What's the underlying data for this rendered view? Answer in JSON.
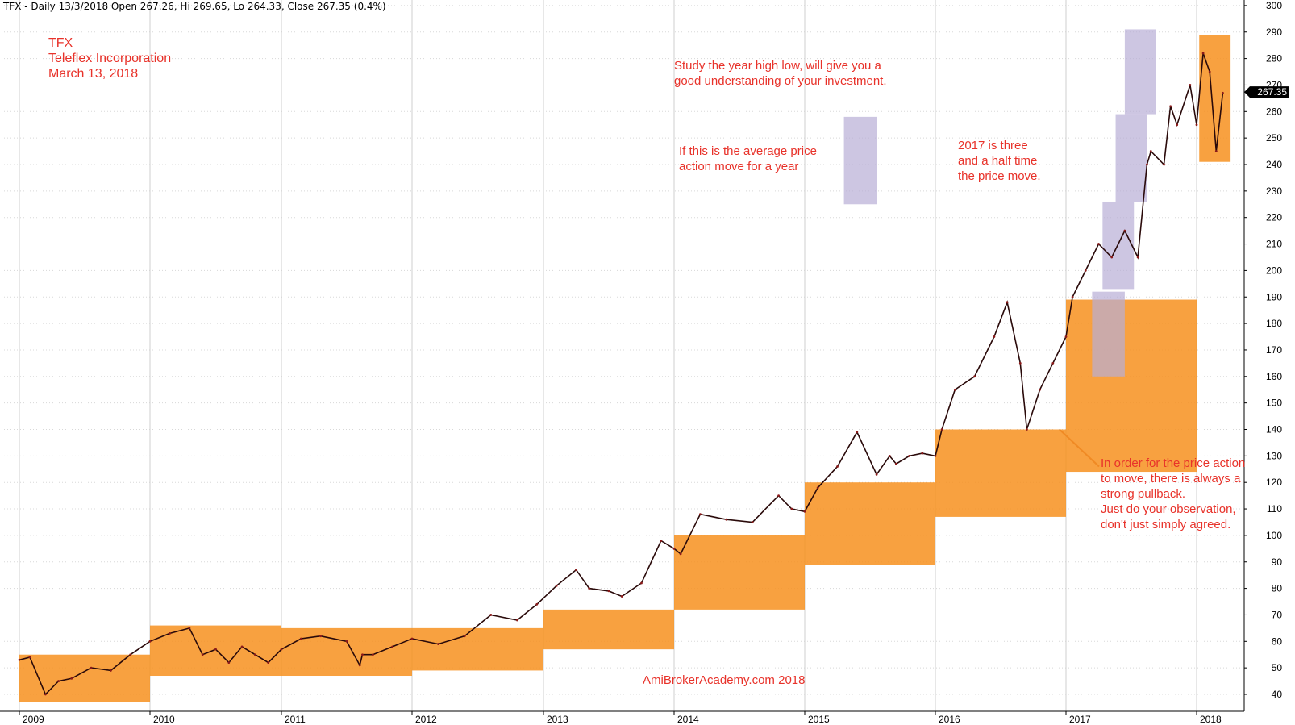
{
  "header": {
    "title": "TFX - Daily 13/3/2018 Open 267.26, Hi 269.65, Lo 264.33, Close 267.35 (0.4%)"
  },
  "company": {
    "ticker": "TFX",
    "name": "Teleflex Incorporation",
    "date": "March 13, 2018"
  },
  "annotations": {
    "study": [
      "Study the year high low, will give you a",
      "good understanding of your investment."
    ],
    "average": [
      "If this is the average price",
      "action move for a year"
    ],
    "three_half": [
      "2017 is three",
      "and a half time",
      "the price move."
    ],
    "pullback": [
      "In order for the price action",
      "to move, there is always a",
      "strong pullback.",
      "Just do your observation,",
      "don't just simply agreed."
    ],
    "watermark": "AmiBrokerAcademy.com  2018"
  },
  "chart_data": {
    "type": "line",
    "ylim": [
      35,
      302
    ],
    "yticks": [
      40,
      50,
      60,
      70,
      80,
      90,
      100,
      110,
      120,
      130,
      140,
      150,
      160,
      170,
      180,
      190,
      200,
      210,
      220,
      230,
      240,
      250,
      260,
      270,
      280,
      290,
      300
    ],
    "year_labels": [
      "2009",
      "2010",
      "2011",
      "2012",
      "2013",
      "2014",
      "2015",
      "2016",
      "2017",
      "2018"
    ],
    "last_price": "267.35",
    "series": [
      {
        "x": [
          2009.0,
          2009.08,
          2009.2,
          2009.3,
          2009.4,
          2009.55,
          2009.7,
          2009.85,
          2010.0,
          2010.15,
          2010.3,
          2010.4,
          2010.5,
          2010.6,
          2010.7,
          2010.8,
          2010.9,
          2011.0,
          2011.15,
          2011.3,
          2011.5,
          2011.6,
          2011.62,
          2011.7,
          2011.85,
          2012.0,
          2012.2,
          2012.4,
          2012.6,
          2012.8,
          2012.95,
          2013.1,
          2013.25,
          2013.35,
          2013.5,
          2013.6,
          2013.75,
          2013.9,
          2014.0,
          2014.05,
          2014.2,
          2014.4,
          2014.6,
          2014.8,
          2014.9,
          2015.0,
          2015.1,
          2015.25,
          2015.4,
          2015.55,
          2015.65,
          2015.7,
          2015.8,
          2015.9,
          2016.0,
          2016.05,
          2016.15,
          2016.3,
          2016.45,
          2016.55,
          2016.65,
          2016.7,
          2016.8,
          2016.9,
          2017.0,
          2017.05,
          2017.15,
          2017.25,
          2017.35,
          2017.45,
          2017.55,
          2017.62,
          2017.65,
          2017.75,
          2017.8,
          2017.85,
          2017.95,
          2018.0,
          2018.05,
          2018.1,
          2018.15,
          2018.2
        ],
        "y": [
          53,
          54,
          40,
          45,
          46,
          50,
          49,
          55,
          60,
          63,
          65,
          55,
          57,
          52,
          58,
          55,
          52,
          57,
          61,
          62,
          60,
          51,
          55,
          55,
          58,
          61,
          59,
          62,
          70,
          68,
          74,
          81,
          87,
          80,
          79,
          77,
          82,
          98,
          95,
          93,
          108,
          106,
          105,
          115,
          110,
          109,
          118,
          126,
          139,
          123,
          130,
          127,
          130,
          131,
          130,
          140,
          155,
          160,
          175,
          188,
          165,
          140,
          155,
          165,
          175,
          190,
          200,
          210,
          205,
          215,
          205,
          240,
          245,
          240,
          262,
          255,
          270,
          255,
          282,
          275,
          245,
          267
        ]
      }
    ]
  }
}
